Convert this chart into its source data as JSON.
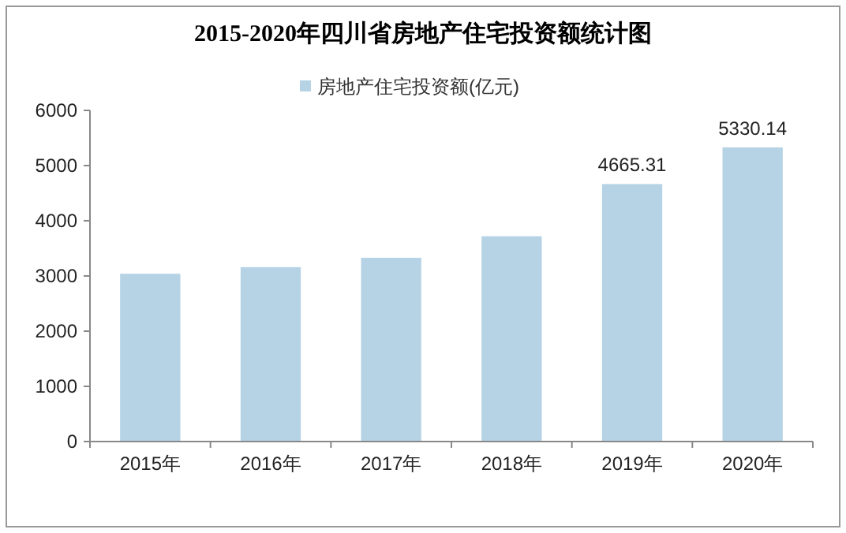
{
  "chart_data": {
    "type": "bar",
    "title": "2015-2020年四川省房地产住宅投资额统计图",
    "categories": [
      "2015年",
      "2016年",
      "2017年",
      "2018年",
      "2019年",
      "2020年"
    ],
    "series": [
      {
        "name": "房地产住宅投资额(亿元)",
        "color": "#b5d3e5",
        "values": [
          3040,
          3160,
          3330,
          3720,
          4665.31,
          5330.14
        ],
        "value_labels": [
          null,
          null,
          null,
          null,
          "4665.31",
          "5330.14"
        ]
      }
    ],
    "ylim": [
      0,
      6000
    ],
    "yticks": [
      0,
      1000,
      2000,
      3000,
      4000,
      5000,
      6000
    ],
    "grid": false,
    "legend": "top"
  }
}
